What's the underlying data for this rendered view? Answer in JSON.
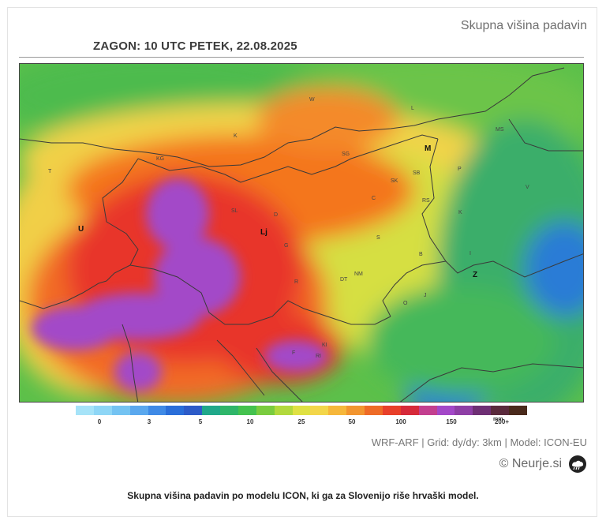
{
  "header": {
    "product_title": "Skupna višina padavin",
    "run_label": "ZAGON: 10 UTC  PETEK, 22.08.2025"
  },
  "map": {
    "region_labels": [
      {
        "id": "u",
        "text": "U"
      },
      {
        "id": "lj",
        "text": "Lj"
      },
      {
        "id": "m",
        "text": "M"
      },
      {
        "id": "z",
        "text": "Z"
      }
    ],
    "place_labels": [
      "W",
      "L",
      "K",
      "KG",
      "SG",
      "SB",
      "SK",
      "MS",
      "V",
      "T",
      "RS",
      "P",
      "SL",
      "C",
      "S",
      "D",
      "K",
      "G",
      "B",
      "NM",
      "DT",
      "R",
      "I",
      "J",
      "O",
      "KI",
      "RI",
      "F"
    ],
    "colors": {
      "very_high": "#a348c8",
      "high": "#e8352a",
      "medium_high": "#f4761f",
      "medium": "#f7c844",
      "low_medium": "#c8df3e",
      "low": "#5cc04a",
      "lower": "#37b072",
      "lowest": "#2c7bd6"
    }
  },
  "legend": {
    "labels": [
      "0",
      "3",
      "5",
      "10",
      "25",
      "50",
      "100",
      "150",
      "200+"
    ],
    "unit": "mm",
    "colors": [
      "#a6e3f8",
      "#8ed6f6",
      "#74c3f2",
      "#5aa8ee",
      "#3f8ae6",
      "#2a6ed9",
      "#2d5bc8",
      "#20a88a",
      "#2fb66a",
      "#44c24f",
      "#7acc3f",
      "#b2d93d",
      "#dfe144",
      "#f3d64a",
      "#f6b73b",
      "#f29530",
      "#ee6b27",
      "#e8402a",
      "#d62a3a",
      "#c33f8f",
      "#a348c8",
      "#8e3fa6",
      "#6e2f74",
      "#5a2a3c",
      "#4a2a1c"
    ]
  },
  "footer": {
    "meta": "WRF-ARF | Grid: dy/dy: 3km | Model: ICON-EU",
    "brand": "© Neurje.si",
    "caption": "Skupna višina padavin po modelu ICON, ki ga za Slovenijo riše hrvaški model."
  }
}
